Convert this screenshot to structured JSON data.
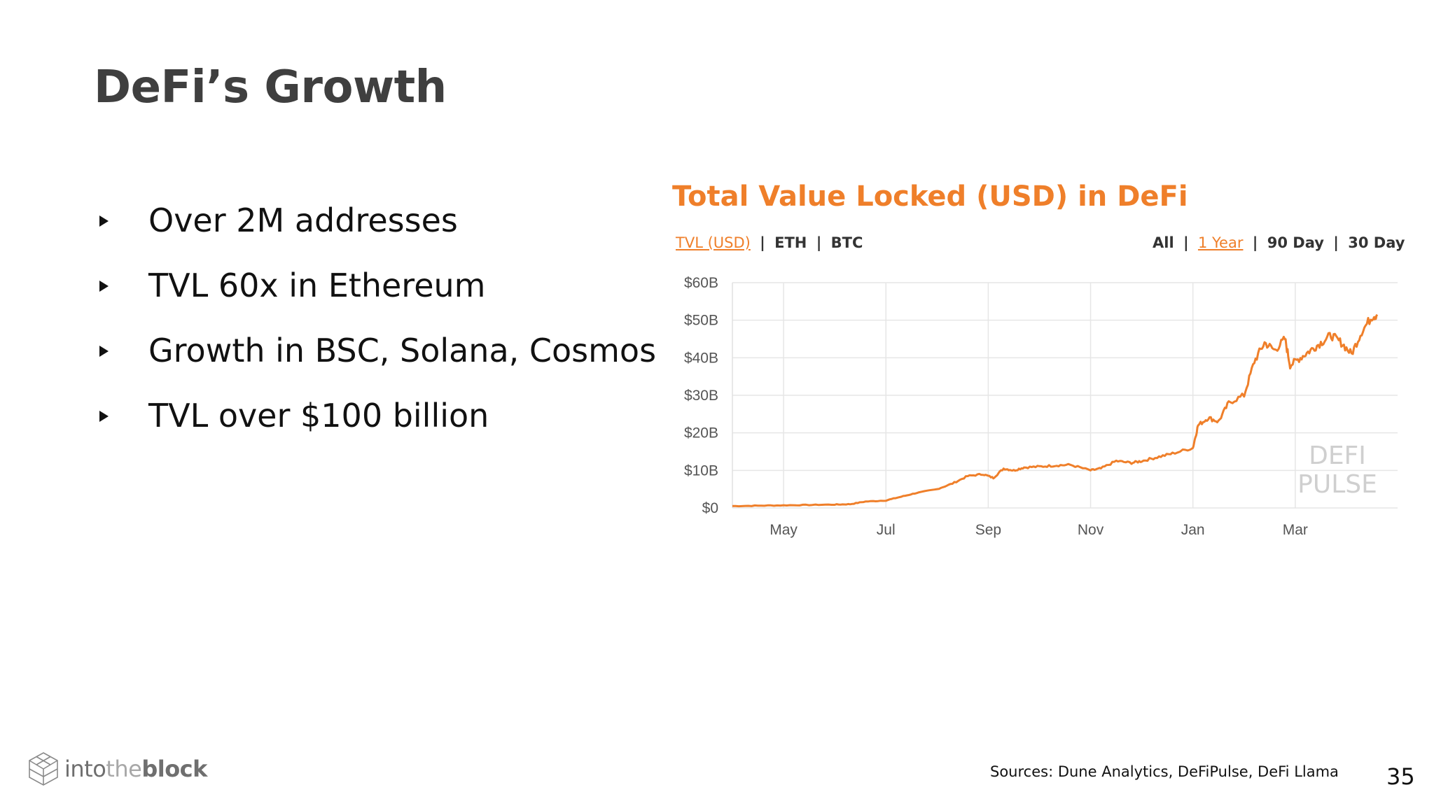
{
  "slide": {
    "title": "DeFi’s Growth",
    "bullets": [
      "Over 2M addresses",
      "TVL 60x in Ethereum",
      "Growth in BSC, Solana, Cosmos",
      "TVL over $100 billion"
    ],
    "sources": "Sources: Dune Analytics, DeFiPulse, DeFi Llama",
    "page_number": "35",
    "logo": {
      "pre": "into",
      "mid": "the",
      "post": "block"
    }
  },
  "chart_controls": {
    "units": [
      "TVL (USD)",
      "ETH",
      "BTC"
    ],
    "units_active": "TVL (USD)",
    "ranges": [
      "All",
      "1 Year",
      "90 Day",
      "30 Day"
    ],
    "ranges_active": "1 Year",
    "separator": "|"
  },
  "watermark": [
    "DEFI",
    "PULSE"
  ],
  "colors": {
    "accent": "#ef7f2a",
    "title": "#3f3f3f",
    "grid": "#e6e6e6",
    "text": "#111111"
  },
  "chart_data": {
    "type": "line",
    "title": "Total Value Locked (USD) in DeFi",
    "xlabel": "",
    "ylabel": "",
    "y_ticks": [
      "$0",
      "$10B",
      "$20B",
      "$30B",
      "$40B",
      "$50B",
      "$60B"
    ],
    "x_ticks": [
      "May",
      "Jul",
      "Sep",
      "Nov",
      "Jan",
      "Mar"
    ],
    "x_tick_months": [
      1,
      3,
      5,
      7,
      9,
      11
    ],
    "ylim": [
      0,
      60
    ],
    "grid": true,
    "series": [
      {
        "values_unit": "$B",
        "x_month_offsets": [
          0,
          0.5,
          1,
          1.5,
          2,
          2.3,
          2.6,
          3,
          3.3,
          3.6,
          4,
          4.3,
          4.6,
          4.9,
          5.1,
          5.3,
          5.5,
          5.7,
          6,
          6.3,
          6.6,
          7,
          7.2,
          7.5,
          7.8,
          8,
          8.3,
          8.6,
          9,
          9.1,
          9.3,
          9.5,
          9.7,
          10,
          10.2,
          10.4,
          10.6,
          10.8,
          10.9,
          11.1,
          11.3,
          11.5,
          11.7,
          11.9,
          12.1,
          12.3,
          12.5,
          12.6
        ],
        "values": [
          0.5,
          0.6,
          0.7,
          0.8,
          0.9,
          1.0,
          1.7,
          2.0,
          3.0,
          4.0,
          5.0,
          6.5,
          8.5,
          9.0,
          8.0,
          10.5,
          10.0,
          10.8,
          11.0,
          11.3,
          11.5,
          10.0,
          10.5,
          12.5,
          12.0,
          12.5,
          13.5,
          14.5,
          16.0,
          22.0,
          24.0,
          23.0,
          28.0,
          30.0,
          39.0,
          44.0,
          42.0,
          45.0,
          38.0,
          40.0,
          42.0,
          44.0,
          46.0,
          44.0,
          41.0,
          47.0,
          51.0,
          51.5
        ]
      }
    ]
  }
}
